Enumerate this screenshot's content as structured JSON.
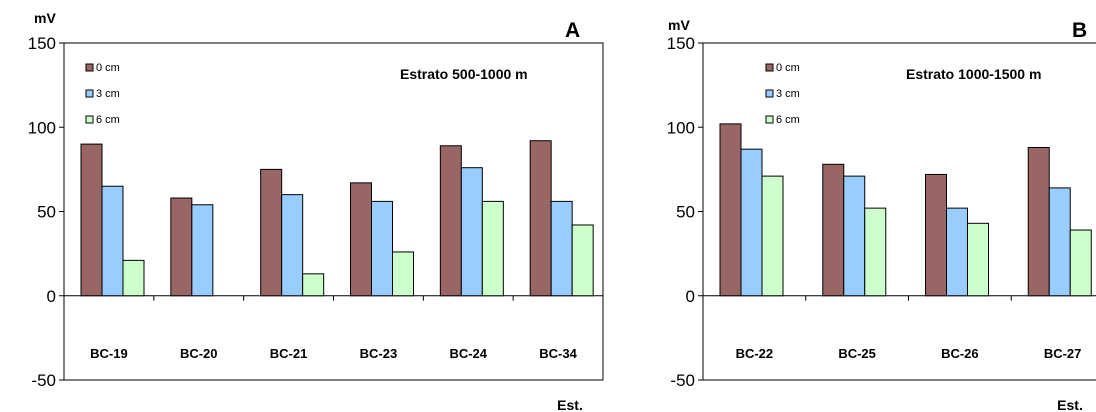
{
  "chart_data": [
    {
      "type": "bar",
      "panel_letter": "A",
      "stratum_label": "Estrato 500-1000 m",
      "ylabel": "mV",
      "xlabel": "Est.",
      "ylim": [
        -50,
        150
      ],
      "yticks": [
        -50,
        0,
        50,
        100,
        150
      ],
      "grid": false,
      "legend_position": "top-left",
      "categories": [
        "BC-19",
        "BC-20",
        "BC-21",
        "BC-23",
        "BC-24",
        "BC-34"
      ],
      "series": [
        {
          "name": "0 cm",
          "color": "#996666",
          "values": [
            90,
            58,
            75,
            67,
            89,
            92
          ]
        },
        {
          "name": "3 cm",
          "color": "#99CCFF",
          "values": [
            65,
            54,
            60,
            56,
            76,
            56
          ]
        },
        {
          "name": "6 cm",
          "color": "#CCFFCC",
          "values": [
            21,
            null,
            13,
            26,
            56,
            42
          ]
        }
      ]
    },
    {
      "type": "bar",
      "panel_letter": "B",
      "stratum_label": "Estrato 1000-1500 m",
      "ylabel": "mV",
      "xlabel": "Est.",
      "ylim": [
        -50,
        150
      ],
      "yticks": [
        -50,
        0,
        50,
        100,
        150
      ],
      "grid": false,
      "legend_position": "top-left",
      "categories": [
        "BC-22",
        "BC-25",
        "BC-26",
        "BC-27"
      ],
      "series": [
        {
          "name": "0 cm",
          "color": "#996666",
          "values": [
            102,
            78,
            72,
            88
          ]
        },
        {
          "name": "3 cm",
          "color": "#99CCFF",
          "values": [
            87,
            71,
            52,
            64
          ]
        },
        {
          "name": "6 cm",
          "color": "#CCFFCC",
          "values": [
            71,
            52,
            43,
            39
          ]
        }
      ]
    }
  ]
}
